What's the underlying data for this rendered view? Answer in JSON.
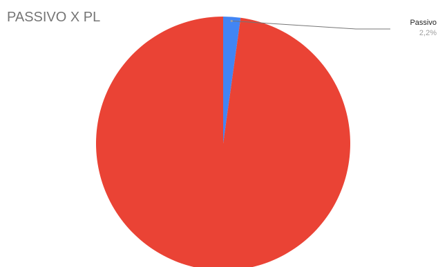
{
  "chart_data": {
    "type": "pie",
    "title": "PASSIVO X PL",
    "slices": [
      {
        "label": "Passivo",
        "value": 2.2,
        "value_label": "2,2%",
        "color": "#4285F4"
      },
      {
        "label": "",
        "value": 97.8,
        "value_label": "",
        "color": "#EA4335"
      }
    ],
    "legend": "none"
  }
}
